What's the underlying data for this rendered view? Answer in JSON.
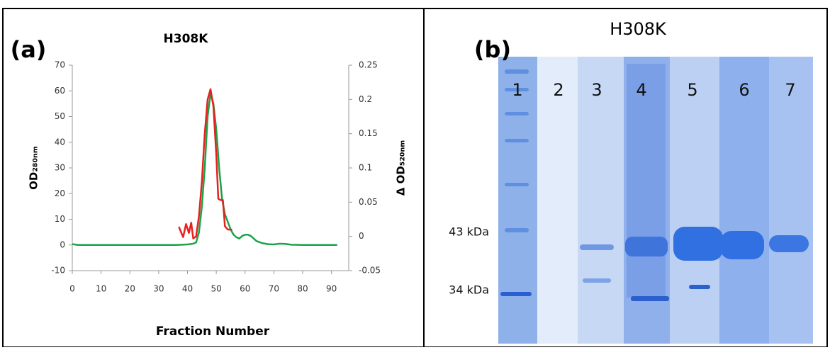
{
  "chart_data": {
    "type": "line",
    "panel_label": "(a)",
    "title": "H308K",
    "x_label": "Fraction Number",
    "y_label": "OD₂₈₀ₙₘ",
    "y2_label": "Δ OD₅₂₀ₙₘ",
    "xlim": [
      0,
      96
    ],
    "xticks": [
      0,
      10,
      20,
      30,
      40,
      50,
      60,
      70,
      80,
      90
    ],
    "ylim": [
      -10,
      70
    ],
    "yticks": [
      -10,
      0,
      10,
      20,
      30,
      40,
      50,
      60,
      70
    ],
    "y2lim": [
      -0.05,
      0.25
    ],
    "y2ticks": [
      -0.05,
      0,
      0.05,
      0.1,
      0.15,
      0.2,
      0.25
    ],
    "grid": false,
    "series": [
      {
        "color": "#1aa34a",
        "axis": "y",
        "x": [
          0,
          2,
          10,
          20,
          30,
          36,
          40,
          42,
          43,
          44,
          45,
          46,
          47,
          48,
          49,
          50,
          51,
          52,
          53,
          54,
          55,
          56,
          57,
          58,
          59,
          60,
          61,
          62,
          63,
          64,
          66,
          68,
          70,
          72,
          74,
          76,
          80,
          85,
          92
        ],
        "values": [
          0.3,
          0,
          0,
          0,
          0,
          0,
          0.2,
          0.5,
          1,
          5,
          15,
          30,
          50,
          59,
          55,
          45,
          30,
          18,
          12,
          9,
          6,
          4,
          3,
          2.5,
          3.5,
          4,
          4,
          3.5,
          2.5,
          1.5,
          0.7,
          0.3,
          0.2,
          0.5,
          0.4,
          0.1,
          0,
          0,
          0
        ]
      },
      {
        "color": "#e8201f",
        "axis": "y2",
        "x": [
          37,
          38.5,
          39.5,
          40.5,
          41.3,
          42,
          43,
          44,
          45,
          46,
          47,
          48,
          49,
          50,
          50.7,
          51.5,
          52.3,
          53,
          54,
          55.5
        ],
        "values": [
          0.014,
          -0.001,
          0.018,
          0.005,
          0.02,
          -0.003,
          0,
          0.03,
          0.08,
          0.15,
          0.2,
          0.215,
          0.19,
          0.12,
          0.055,
          0.053,
          0.053,
          0.015,
          0.01,
          0.01
        ]
      }
    ]
  },
  "panel_b": {
    "panel_label": "(b)",
    "title": "H308K",
    "lanes": [
      "1",
      "2",
      "3",
      "4",
      "5",
      "6",
      "7"
    ],
    "markers": [
      "43 kDa",
      "34 kDa"
    ]
  }
}
